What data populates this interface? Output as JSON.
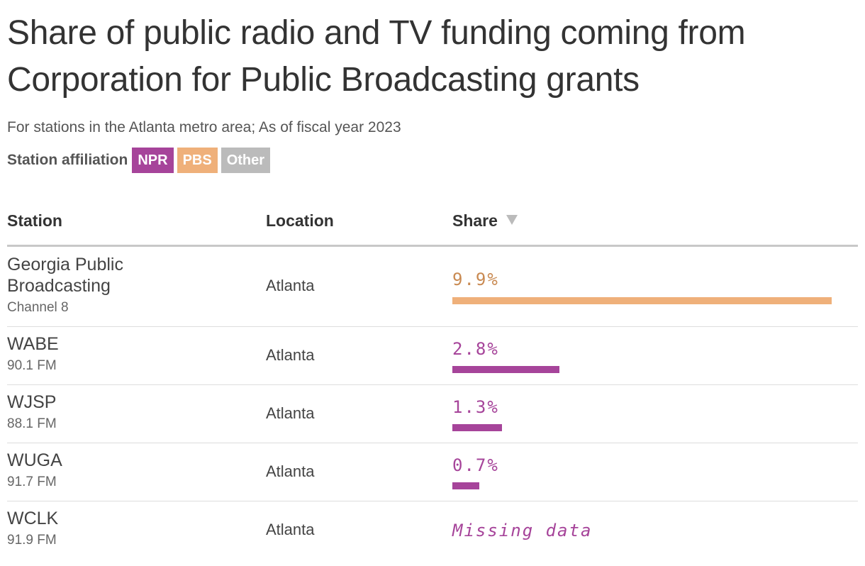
{
  "title": "Share of public radio and TV funding coming from Corporation for Public Broadcasting grants",
  "subtitle": "For stations in the Atlanta metro area; As of fiscal year 2023",
  "legend": {
    "label": "Station affiliation",
    "items": [
      {
        "name": "NPR",
        "color": "#a6449a"
      },
      {
        "name": "PBS",
        "color": "#efb07a"
      },
      {
        "name": "Other",
        "color": "#bbbbbb"
      }
    ]
  },
  "table": {
    "columns": [
      "Station",
      "Location",
      "Share"
    ],
    "sort_icon": "sort-down-icon"
  },
  "colors": {
    "NPR": "#a6449a",
    "PBS": "#efb07a",
    "PBS_text": "#c98a52",
    "Other": "#bbbbbb"
  },
  "chart_data": {
    "type": "table",
    "value_max": 10,
    "rows": [
      {
        "station": "Georgia Public Broadcasting",
        "detail": "Channel 8",
        "location": "Atlanta",
        "share": 9.9,
        "share_label": "9.9%",
        "affiliation": "PBS"
      },
      {
        "station": "WABE",
        "detail": "90.1 FM",
        "location": "Atlanta",
        "share": 2.8,
        "share_label": "2.8%",
        "affiliation": "NPR"
      },
      {
        "station": "WJSP",
        "detail": "88.1 FM",
        "location": "Atlanta",
        "share": 1.3,
        "share_label": "1.3%",
        "affiliation": "NPR"
      },
      {
        "station": "WUGA",
        "detail": "91.7 FM",
        "location": "Atlanta",
        "share": 0.7,
        "share_label": "0.7%",
        "affiliation": "NPR"
      },
      {
        "station": "WCLK",
        "detail": "91.9 FM",
        "location": "Atlanta",
        "share": null,
        "share_label": "Missing data",
        "affiliation": "NPR"
      }
    ]
  }
}
